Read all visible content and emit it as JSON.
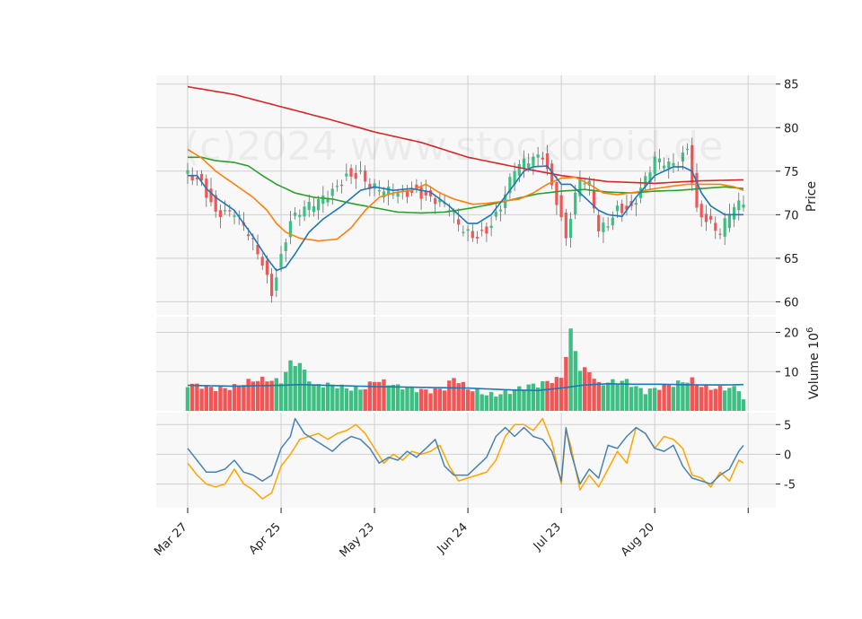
{
  "chart_data": {
    "type": "candlestick",
    "watermark": "(c)2024 www.stockdroid.de",
    "colors": {
      "up": "#3dbf83",
      "down": "#f25555",
      "ma_blue": "#1f77b4",
      "ma_orange": "#ff7f0e",
      "ma_green": "#2ca02c",
      "ma_red": "#d62728",
      "vol_avg": "#1f77b4",
      "osc_blue": "#4682b4",
      "osc_orange": "#ffa500",
      "panel_bg": "#f8f8f8",
      "grid": "#cfcfcf"
    },
    "x_labels": [
      "Mar 27",
      "Apr 25",
      "May 23",
      "Jun 24",
      "Jul 23",
      "Aug 20"
    ],
    "x_label_index": [
      0,
      20,
      40,
      60,
      80,
      100
    ],
    "n_bars": 120,
    "price_panel": {
      "ylabel": "Price",
      "ylim": [
        58.5,
        86
      ],
      "ticks": [
        60,
        65,
        70,
        75,
        80,
        85
      ],
      "ohlc_anchors": [
        [
          0,
          74.6
        ],
        [
          3,
          74.0
        ],
        [
          6,
          70.5
        ],
        [
          10,
          70.0
        ],
        [
          13,
          67.5
        ],
        [
          16,
          64.5
        ],
        [
          18,
          61.3
        ],
        [
          20,
          65.5
        ],
        [
          22,
          69.5
        ],
        [
          25,
          70.5
        ],
        [
          28,
          71.2
        ],
        [
          31,
          72.8
        ],
        [
          34,
          74.8
        ],
        [
          37,
          74.8
        ],
        [
          39,
          73.0
        ],
        [
          42,
          72.4
        ],
        [
          45,
          72.5
        ],
        [
          49,
          73.0
        ],
        [
          52,
          72.0
        ],
        [
          56,
          70.5
        ],
        [
          58,
          68.5
        ],
        [
          61,
          67.6
        ],
        [
          64,
          68.5
        ],
        [
          67,
          71.0
        ],
        [
          70,
          75.0
        ],
        [
          73,
          76.0
        ],
        [
          76,
          77.0
        ],
        [
          79,
          72.0
        ],
        [
          81,
          67.5
        ],
        [
          82,
          70.0
        ],
        [
          84,
          74.0
        ],
        [
          86,
          73.0
        ],
        [
          88,
          68.0
        ],
        [
          90,
          69.0
        ],
        [
          92,
          71.0
        ],
        [
          95,
          71.0
        ],
        [
          97,
          73.0
        ],
        [
          100,
          76.0
        ],
        [
          103,
          75.5
        ],
        [
          105,
          76.0
        ],
        [
          107,
          78.0
        ],
        [
          109,
          70.8
        ],
        [
          112,
          69.0
        ],
        [
          114,
          67.5
        ],
        [
          116,
          70.0
        ],
        [
          118,
          71.0
        ],
        [
          119,
          71.5
        ]
      ],
      "ma_blue_anchors": [
        [
          0,
          74.5
        ],
        [
          2,
          74.5
        ],
        [
          4,
          73.0
        ],
        [
          6,
          72.0
        ],
        [
          10,
          70.5
        ],
        [
          14,
          67.5
        ],
        [
          17,
          65.0
        ],
        [
          19,
          63.6
        ],
        [
          21,
          64.0
        ],
        [
          23,
          65.5
        ],
        [
          26,
          68.0
        ],
        [
          29,
          69.5
        ],
        [
          33,
          71.0
        ],
        [
          37,
          72.8
        ],
        [
          40,
          73.2
        ],
        [
          44,
          72.8
        ],
        [
          48,
          73.0
        ],
        [
          52,
          72.6
        ],
        [
          56,
          71.0
        ],
        [
          60,
          69.0
        ],
        [
          62,
          69.0
        ],
        [
          65,
          70.0
        ],
        [
          69,
          72.8
        ],
        [
          72,
          75.0
        ],
        [
          74,
          75.5
        ],
        [
          77,
          75.6
        ],
        [
          80,
          73.5
        ],
        [
          82,
          73.5
        ],
        [
          84,
          72.5
        ],
        [
          86,
          71.5
        ],
        [
          88,
          70.5
        ],
        [
          90,
          70.0
        ],
        [
          93,
          69.8
        ],
        [
          96,
          72.0
        ],
        [
          100,
          74.5
        ],
        [
          104,
          75.5
        ],
        [
          106,
          75.5
        ],
        [
          108,
          75.0
        ],
        [
          110,
          72.5
        ],
        [
          112,
          71.0
        ],
        [
          115,
          70.0
        ],
        [
          118,
          70.0
        ],
        [
          119,
          70.0
        ]
      ],
      "ma_orange_anchors": [
        [
          0,
          77.5
        ],
        [
          3,
          76.5
        ],
        [
          6,
          75.0
        ],
        [
          10,
          73.5
        ],
        [
          14,
          72.0
        ],
        [
          17,
          70.5
        ],
        [
          19,
          69.0
        ],
        [
          21,
          68.0
        ],
        [
          24,
          67.3
        ],
        [
          28,
          67.0
        ],
        [
          32,
          67.2
        ],
        [
          35,
          68.5
        ],
        [
          38,
          70.5
        ],
        [
          41,
          72.0
        ],
        [
          44,
          72.5
        ],
        [
          48,
          72.8
        ],
        [
          51,
          73.5
        ],
        [
          54,
          72.5
        ],
        [
          57,
          71.8
        ],
        [
          61,
          71.2
        ],
        [
          64,
          71.3
        ],
        [
          67,
          71.5
        ],
        [
          71,
          71.8
        ],
        [
          74,
          72.5
        ],
        [
          77,
          73.5
        ],
        [
          80,
          74.2
        ],
        [
          83,
          74.3
        ],
        [
          86,
          73.5
        ],
        [
          89,
          72.5
        ],
        [
          92,
          72.3
        ],
        [
          96,
          72.6
        ],
        [
          100,
          73.0
        ],
        [
          104,
          73.3
        ],
        [
          107,
          73.5
        ],
        [
          110,
          73.5
        ],
        [
          114,
          73.5
        ],
        [
          117,
          73.2
        ],
        [
          119,
          72.8
        ]
      ],
      "ma_green_anchors": [
        [
          0,
          76.6
        ],
        [
          3,
          76.6
        ],
        [
          6,
          76.2
        ],
        [
          10,
          76.0
        ],
        [
          13,
          75.6
        ],
        [
          16,
          74.5
        ],
        [
          19,
          73.5
        ],
        [
          23,
          72.5
        ],
        [
          27,
          72.0
        ],
        [
          31,
          71.8
        ],
        [
          35,
          71.3
        ],
        [
          40,
          70.8
        ],
        [
          45,
          70.3
        ],
        [
          50,
          70.2
        ],
        [
          55,
          70.3
        ],
        [
          60,
          70.7
        ],
        [
          65,
          71.2
        ],
        [
          70,
          71.8
        ],
        [
          75,
          72.4
        ],
        [
          80,
          72.7
        ],
        [
          85,
          72.9
        ],
        [
          90,
          72.6
        ],
        [
          95,
          72.5
        ],
        [
          100,
          72.7
        ],
        [
          105,
          72.8
        ],
        [
          110,
          73.0
        ],
        [
          115,
          73.2
        ],
        [
          119,
          73.0
        ]
      ],
      "ma_red_anchors": [
        [
          0,
          84.7
        ],
        [
          10,
          83.8
        ],
        [
          20,
          82.4
        ],
        [
          30,
          81.0
        ],
        [
          40,
          79.5
        ],
        [
          50,
          78.3
        ],
        [
          60,
          76.6
        ],
        [
          70,
          75.5
        ],
        [
          80,
          74.5
        ],
        [
          90,
          73.8
        ],
        [
          100,
          73.6
        ],
        [
          110,
          73.9
        ],
        [
          119,
          74.0
        ]
      ]
    },
    "volume_panel": {
      "ylabel": "Volume  10",
      "ylabel_exponent": "6",
      "ylim": [
        0,
        24
      ],
      "ticks": [
        10,
        20
      ],
      "volume_anchors": [
        [
          0,
          6.0
        ],
        [
          10,
          6.5
        ],
        [
          20,
          8.0
        ],
        [
          22,
          13.0
        ],
        [
          24,
          12.5
        ],
        [
          27,
          6.0
        ],
        [
          34,
          6.0
        ],
        [
          38,
          6.5
        ],
        [
          40,
          8.0
        ],
        [
          45,
          5.5
        ],
        [
          55,
          6.0
        ],
        [
          57,
          8.0
        ],
        [
          60,
          5.0
        ],
        [
          64,
          4.5
        ],
        [
          70,
          5.5
        ],
        [
          75,
          6.0
        ],
        [
          80,
          9.0
        ],
        [
          82,
          21.0
        ],
        [
          84,
          11.0
        ],
        [
          86,
          10.0
        ],
        [
          88,
          6.0
        ],
        [
          94,
          8.0
        ],
        [
          98,
          5.5
        ],
        [
          104,
          6.0
        ],
        [
          108,
          8.0
        ],
        [
          110,
          7.0
        ],
        [
          114,
          6.0
        ],
        [
          118,
          5.0
        ],
        [
          119,
          2.0
        ]
      ],
      "volume_avg_anchors": [
        [
          0,
          6.5
        ],
        [
          10,
          6.3
        ],
        [
          20,
          6.5
        ],
        [
          24,
          6.7
        ],
        [
          30,
          6.5
        ],
        [
          40,
          6.2
        ],
        [
          50,
          6.0
        ],
        [
          60,
          5.8
        ],
        [
          70,
          5.3
        ],
        [
          75,
          5.2
        ],
        [
          80,
          5.8
        ],
        [
          85,
          6.6
        ],
        [
          90,
          6.9
        ],
        [
          95,
          6.8
        ],
        [
          100,
          6.8
        ],
        [
          105,
          6.7
        ],
        [
          110,
          6.6
        ],
        [
          115,
          6.6
        ],
        [
          119,
          6.7
        ]
      ]
    },
    "oscillator_panel": {
      "ylim": [
        -9,
        7
      ],
      "ticks": [
        -5,
        0,
        5
      ],
      "blue_anchors": [
        [
          0,
          1.0
        ],
        [
          2,
          -1.0
        ],
        [
          4,
          -3.0
        ],
        [
          6,
          -3.0
        ],
        [
          8,
          -2.5
        ],
        [
          10,
          -1.0
        ],
        [
          12,
          -3.0
        ],
        [
          14,
          -3.5
        ],
        [
          16,
          -4.5
        ],
        [
          18,
          -3.5
        ],
        [
          20,
          1.0
        ],
        [
          22,
          3.0
        ],
        [
          23,
          6.0
        ],
        [
          25,
          3.5
        ],
        [
          27,
          2.5
        ],
        [
          29,
          1.5
        ],
        [
          31,
          0.5
        ],
        [
          33,
          2.0
        ],
        [
          35,
          3.0
        ],
        [
          37,
          2.5
        ],
        [
          39,
          1.0
        ],
        [
          41,
          -1.5
        ],
        [
          43,
          -0.5
        ],
        [
          45,
          -1.0
        ],
        [
          47,
          0.5
        ],
        [
          49,
          -0.5
        ],
        [
          51,
          1.0
        ],
        [
          53,
          2.5
        ],
        [
          55,
          -2.0
        ],
        [
          57,
          -3.5
        ],
        [
          60,
          -3.5
        ],
        [
          62,
          -2.0
        ],
        [
          64,
          -0.5
        ],
        [
          66,
          3.0
        ],
        [
          68,
          4.5
        ],
        [
          70,
          3.0
        ],
        [
          72,
          4.5
        ],
        [
          74,
          3.0
        ],
        [
          76,
          2.5
        ],
        [
          78,
          0.5
        ],
        [
          80,
          -4.5
        ],
        [
          81,
          4.5
        ],
        [
          82,
          0.5
        ],
        [
          84,
          -5.0
        ],
        [
          86,
          -2.5
        ],
        [
          88,
          -4.0
        ],
        [
          90,
          1.5
        ],
        [
          92,
          1.0
        ],
        [
          94,
          3.0
        ],
        [
          96,
          4.5
        ],
        [
          98,
          3.5
        ],
        [
          100,
          1.0
        ],
        [
          102,
          0.5
        ],
        [
          104,
          1.5
        ],
        [
          106,
          -2.0
        ],
        [
          108,
          -4.0
        ],
        [
          110,
          -4.5
        ],
        [
          112,
          -5.0
        ],
        [
          114,
          -3.5
        ],
        [
          116,
          -2.5
        ],
        [
          118,
          0.5
        ],
        [
          119,
          1.5
        ]
      ],
      "orange_anchors": [
        [
          0,
          -1.5
        ],
        [
          2,
          -3.5
        ],
        [
          4,
          -5.0
        ],
        [
          6,
          -5.5
        ],
        [
          8,
          -5.0
        ],
        [
          10,
          -2.5
        ],
        [
          12,
          -5.0
        ],
        [
          14,
          -6.0
        ],
        [
          16,
          -7.5
        ],
        [
          18,
          -6.5
        ],
        [
          20,
          -2.0
        ],
        [
          22,
          0.0
        ],
        [
          24,
          2.5
        ],
        [
          26,
          3.0
        ],
        [
          28,
          3.5
        ],
        [
          30,
          2.5
        ],
        [
          32,
          3.5
        ],
        [
          34,
          4.0
        ],
        [
          36,
          5.0
        ],
        [
          38,
          3.5
        ],
        [
          40,
          1.0
        ],
        [
          42,
          -1.5
        ],
        [
          44,
          0.0
        ],
        [
          46,
          -1.0
        ],
        [
          48,
          0.5
        ],
        [
          50,
          0.0
        ],
        [
          52,
          0.5
        ],
        [
          54,
          1.5
        ],
        [
          56,
          -2.0
        ],
        [
          58,
          -4.5
        ],
        [
          60,
          -4.0
        ],
        [
          62,
          -3.5
        ],
        [
          64,
          -3.0
        ],
        [
          66,
          -1.0
        ],
        [
          68,
          3.0
        ],
        [
          70,
          5.0
        ],
        [
          72,
          5.0
        ],
        [
          74,
          4.0
        ],
        [
          76,
          6.0
        ],
        [
          78,
          2.0
        ],
        [
          80,
          -5.0
        ],
        [
          81,
          4.0
        ],
        [
          82,
          1.5
        ],
        [
          84,
          -6.0
        ],
        [
          86,
          -3.5
        ],
        [
          88,
          -5.5
        ],
        [
          90,
          -2.5
        ],
        [
          92,
          0.5
        ],
        [
          94,
          -1.5
        ],
        [
          96,
          4.5
        ],
        [
          98,
          3.5
        ],
        [
          100,
          1.0
        ],
        [
          102,
          3.0
        ],
        [
          104,
          2.5
        ],
        [
          106,
          1.0
        ],
        [
          108,
          -3.5
        ],
        [
          110,
          -4.0
        ],
        [
          112,
          -5.5
        ],
        [
          114,
          -3.0
        ],
        [
          116,
          -4.5
        ],
        [
          118,
          -1.0
        ],
        [
          119,
          -1.5
        ]
      ]
    }
  }
}
